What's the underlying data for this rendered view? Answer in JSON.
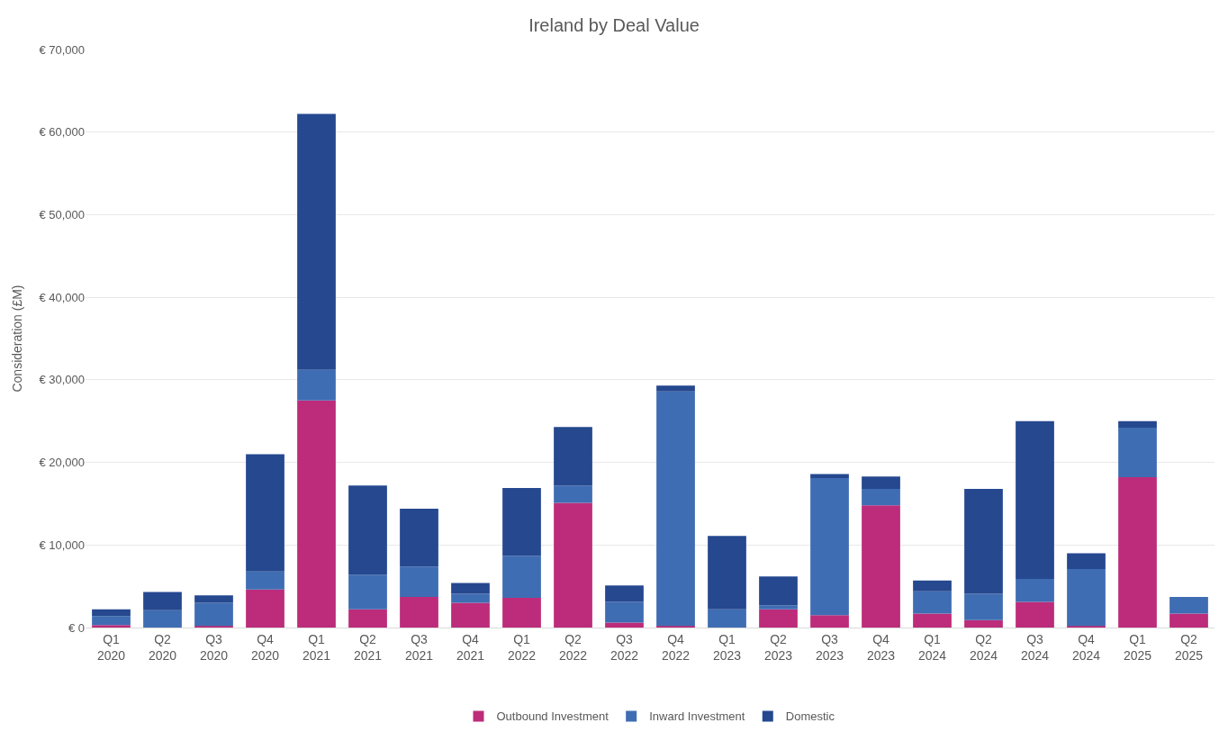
{
  "chart_data": {
    "type": "bar",
    "title": "Ireland by Deal Value",
    "ylabel": "Consideration (£M)",
    "stacked": true,
    "grid": "y",
    "legend": "bottom",
    "categories": [
      "Q1\n2020",
      "Q2\n2020",
      "Q3\n2020",
      "Q4\n2020",
      "Q1\n2021",
      "Q2\n2021",
      "Q3\n2021",
      "Q4\n2021",
      "Q1\n2022",
      "Q2\n2022",
      "Q3\n2022",
      "Q4\n2022",
      "Q1\n2023",
      "Q2\n2023",
      "Q3\n2023",
      "Q4\n2023",
      "Q1\n2024",
      "Q2\n2024",
      "Q3\n2024",
      "Q4\n2024",
      "Q1\n2025",
      "Q2\n2025"
    ],
    "series": [
      {
        "name": "Outbound Investment",
        "color": "#bc2c7a",
        "values": [
          300,
          0,
          200,
          4600,
          27500,
          2200,
          3700,
          3000,
          3600,
          15100,
          600,
          200,
          0,
          2200,
          1500,
          14800,
          1700,
          900,
          3100,
          200,
          18200,
          1700
        ]
      },
      {
        "name": "Inward Investment",
        "color": "#3f6db3",
        "values": [
          1100,
          2100,
          2800,
          2200,
          3700,
          4200,
          3700,
          1100,
          5100,
          2100,
          2500,
          28400,
          2200,
          500,
          16600,
          2000,
          2700,
          3200,
          2800,
          6900,
          6000,
          2000
        ]
      },
      {
        "name": "Domestic",
        "color": "#25488f",
        "values": [
          800,
          2200,
          900,
          14200,
          31000,
          10800,
          7000,
          1300,
          8200,
          7100,
          2000,
          700,
          8900,
          3500,
          500,
          1500,
          1300,
          12700,
          19100,
          1900,
          800,
          0
        ]
      }
    ],
    "ylim": [
      0,
      70000
    ],
    "yticks": [
      {
        "value": 0,
        "label": "€ 0"
      },
      {
        "value": 10000,
        "label": "€ 10,000"
      },
      {
        "value": 20000,
        "label": "€ 20,000"
      },
      {
        "value": 30000,
        "label": "€ 30,000"
      },
      {
        "value": 40000,
        "label": "€ 40,000"
      },
      {
        "value": 50000,
        "label": "€ 50,000"
      },
      {
        "value": 60000,
        "label": "€ 60,000"
      },
      {
        "value": 70000,
        "label": "€ 70,000"
      }
    ]
  }
}
